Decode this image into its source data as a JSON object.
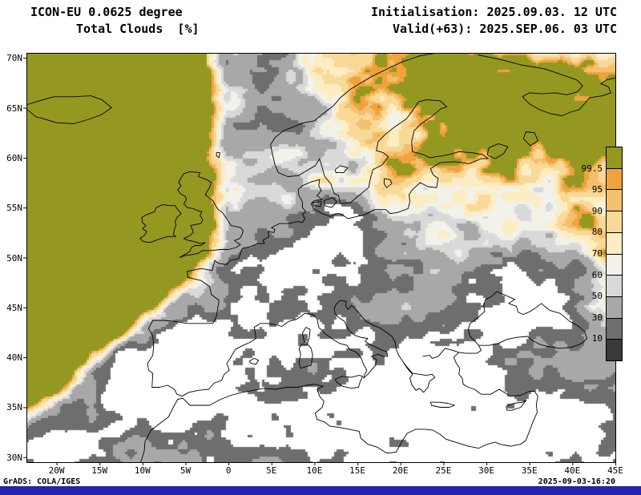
{
  "header": {
    "model_line": "ICON-EU 0.0625 degree",
    "variable_line": "Total Clouds  [%]",
    "init_line": "Initialisation: 2025.09.03. 12 UTC",
    "valid_line": "Valid(+63): 2025.SEP.06. 03 UTC"
  },
  "axes": {
    "lat_ticks": [
      {
        "label": "70N",
        "value": 70
      },
      {
        "label": "65N",
        "value": 65
      },
      {
        "label": "60N",
        "value": 60
      },
      {
        "label": "55N",
        "value": 55
      },
      {
        "label": "50N",
        "value": 50
      },
      {
        "label": "45N",
        "value": 45
      },
      {
        "label": "40N",
        "value": 40
      },
      {
        "label": "35N",
        "value": 35
      },
      {
        "label": "30N",
        "value": 30
      }
    ],
    "lon_ticks": [
      {
        "label": "20W",
        "value": -20
      },
      {
        "label": "15W",
        "value": -15
      },
      {
        "label": "10W",
        "value": -10
      },
      {
        "label": "5W",
        "value": -5
      },
      {
        "label": "0",
        "value": 0
      },
      {
        "label": "5E",
        "value": 5
      },
      {
        "label": "10E",
        "value": 10
      },
      {
        "label": "15E",
        "value": 15
      },
      {
        "label": "20E",
        "value": 20
      },
      {
        "label": "25E",
        "value": 25
      },
      {
        "label": "30E",
        "value": 30
      },
      {
        "label": "35E",
        "value": 35
      },
      {
        "label": "40E",
        "value": 40
      },
      {
        "label": "45E",
        "value": 45
      }
    ]
  },
  "colorbar": {
    "levels": [
      {
        "color": "#949821",
        "boundary_label": "99.5"
      },
      {
        "color": "#f0a33c",
        "boundary_label": "95"
      },
      {
        "color": "#f4c06d",
        "boundary_label": "90"
      },
      {
        "color": "#f8d998",
        "boundary_label": "80"
      },
      {
        "color": "#fcedc3",
        "boundary_label": "70"
      },
      {
        "color": "#f2f1ea",
        "boundary_label": "60"
      },
      {
        "color": "#d9d9d9",
        "boundary_label": "50"
      },
      {
        "color": "#a8a8a8",
        "boundary_label": "30"
      },
      {
        "color": "#6e6e6e",
        "boundary_label": "10"
      },
      {
        "color": "#3a3a3a",
        "boundary_label": null
      }
    ]
  },
  "footer": {
    "credit": "GrADS: COLA/IGES",
    "timestamp": "2025-09-03-16:20",
    "bar_color": "#2323ab"
  },
  "map_domain": {
    "lon_min": -23.5,
    "lon_max": 45.0,
    "lat_min": 29.5,
    "lat_max": 70.5
  }
}
